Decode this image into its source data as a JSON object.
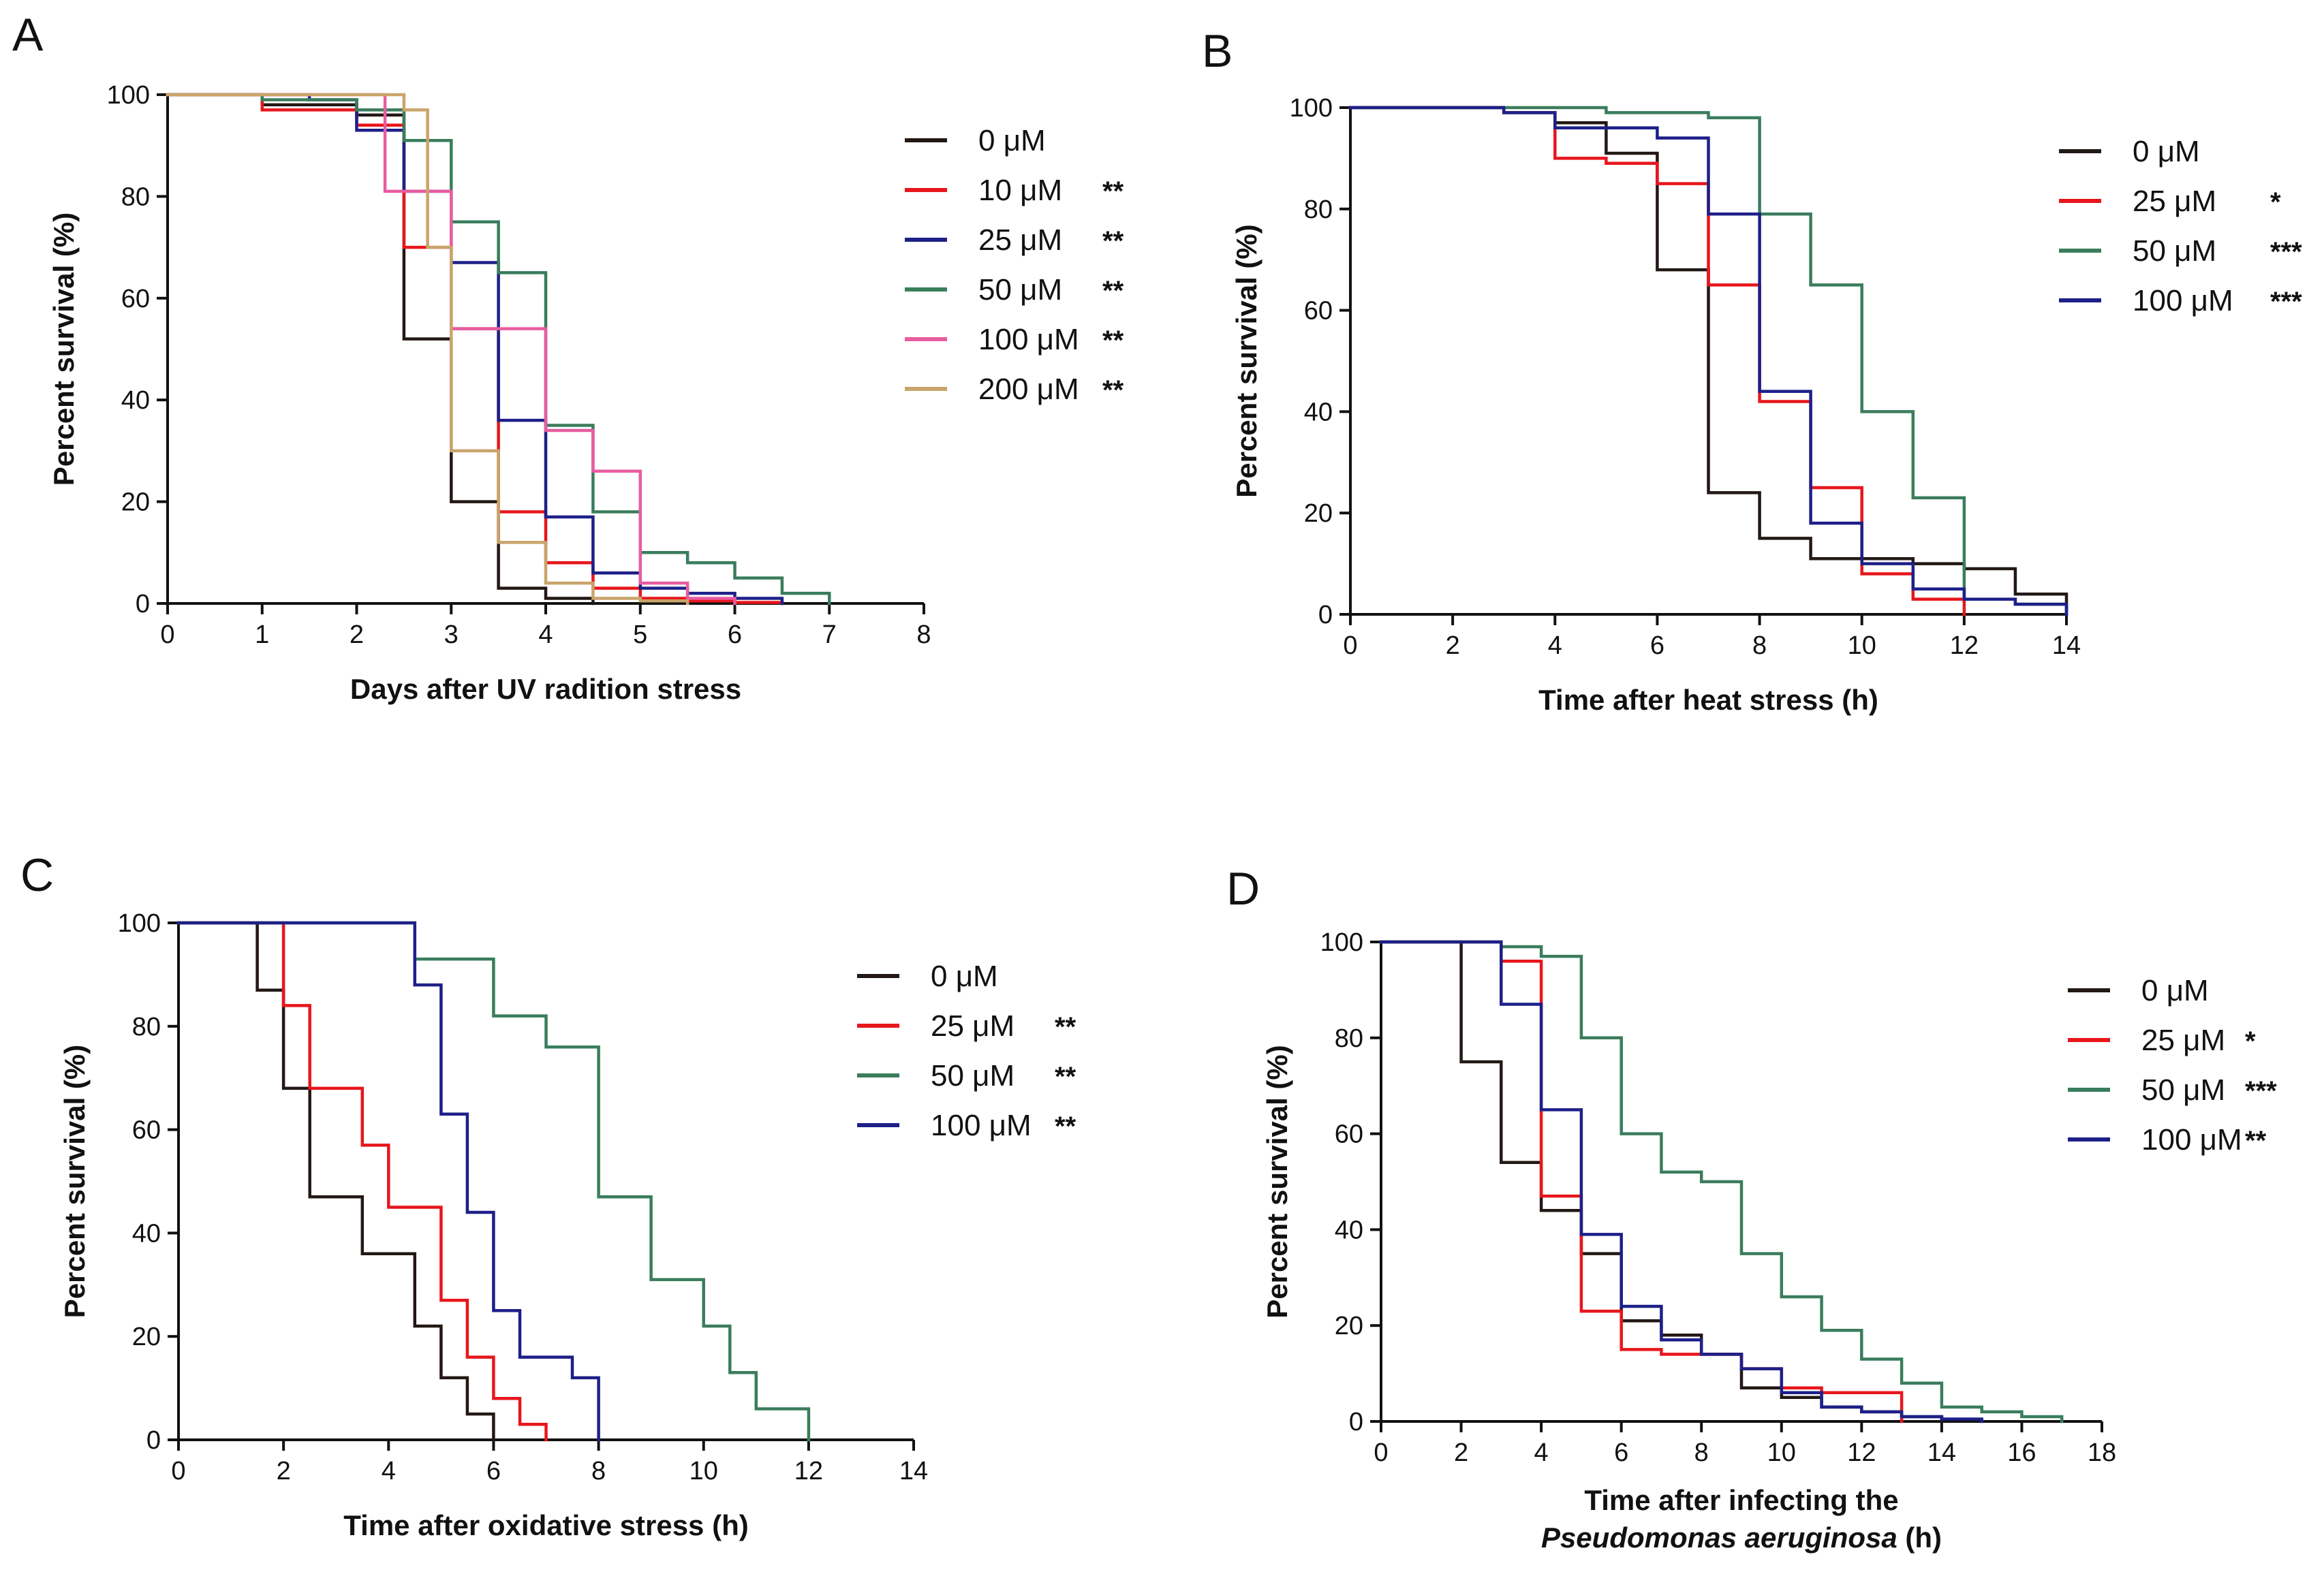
{
  "chart_data": [
    {
      "type": "line",
      "subtype": "kaplan-meier-step",
      "panel": "A",
      "xlabel": "Days after UV radition stress",
      "xlabel_lines": [
        "Days after UV radition stress"
      ],
      "ylabel": "Percent survival (%)",
      "xlim": [
        0,
        8
      ],
      "ylim": [
        0,
        100
      ],
      "xticks": [
        0,
        1,
        2,
        3,
        4,
        5,
        6,
        7,
        8
      ],
      "yticks": [
        0,
        20,
        40,
        60,
        80,
        100
      ],
      "series": [
        {
          "name": "0 μM",
          "sig": "",
          "color": "#231815",
          "x": [
            0,
            1,
            2,
            2.5,
            3,
            3.5,
            4,
            4.5
          ],
          "y": [
            100,
            98,
            96,
            52,
            20,
            3,
            1,
            0
          ]
        },
        {
          "name": "10 μM",
          "sig": "**",
          "color": "#e8161c",
          "x": [
            0,
            1,
            2,
            2.5,
            3,
            3.5,
            4,
            4.5,
            5,
            5.5,
            6,
            6.5
          ],
          "y": [
            100,
            97,
            94,
            70,
            54,
            18,
            8,
            3,
            1,
            0.5,
            0.2,
            0
          ]
        },
        {
          "name": "25 μM",
          "sig": "**",
          "color": "#1d2088",
          "x": [
            0,
            1.5,
            2,
            2.5,
            3,
            3.5,
            4,
            4.5,
            5,
            5.5,
            6,
            6.5
          ],
          "y": [
            100,
            99,
            93,
            81,
            67,
            36,
            17,
            6,
            3,
            2,
            1,
            0
          ]
        },
        {
          "name": "50 μM",
          "sig": "**",
          "color": "#3a7d5c",
          "x": [
            0,
            1,
            2,
            2.5,
            3,
            3.5,
            4,
            4.5,
            5,
            5.5,
            6,
            6.5,
            7
          ],
          "y": [
            100,
            99,
            97,
            91,
            75,
            65,
            35,
            18,
            10,
            8,
            5,
            2,
            0
          ]
        },
        {
          "name": "100 μM",
          "sig": "**",
          "color": "#e85ca0",
          "x": [
            0,
            2,
            2.3,
            3,
            3.5,
            4,
            4.5,
            5,
            5.5,
            6
          ],
          "y": [
            100,
            100,
            81,
            54,
            54,
            34,
            26,
            4,
            1,
            0
          ]
        },
        {
          "name": "200 μM",
          "sig": "**",
          "color": "#c9a46a",
          "x": [
            0,
            2.5,
            2.75,
            3,
            3.5,
            4,
            4.5,
            5,
            5.5
          ],
          "y": [
            100,
            97,
            70,
            30,
            12,
            4,
            1,
            0.5,
            0
          ]
        }
      ]
    },
    {
      "type": "line",
      "subtype": "kaplan-meier-step",
      "panel": "B",
      "xlabel": "Time after heat stress (h)",
      "xlabel_lines": [
        "Time after heat stress (h)"
      ],
      "ylabel": "Percent survival (%)",
      "xlim": [
        0,
        14
      ],
      "ylim": [
        0,
        100
      ],
      "xticks": [
        0,
        2,
        4,
        6,
        8,
        10,
        12,
        14
      ],
      "yticks": [
        0,
        20,
        40,
        60,
        80,
        100
      ],
      "series": [
        {
          "name": "0 μM",
          "sig": "",
          "color": "#231815",
          "x": [
            0,
            3,
            4,
            5,
            6,
            7,
            8,
            9,
            10,
            11,
            12,
            13,
            14
          ],
          "y": [
            100,
            99,
            97,
            91,
            68,
            24,
            15,
            11,
            11,
            10,
            9,
            4,
            0
          ]
        },
        {
          "name": "25 μM",
          "sig": "*",
          "color": "#e8161c",
          "x": [
            0,
            3,
            4,
            5,
            6,
            7,
            8,
            9,
            10,
            11,
            12
          ],
          "y": [
            100,
            99,
            90,
            89,
            85,
            65,
            42,
            25,
            8,
            3,
            0
          ]
        },
        {
          "name": "50 μM",
          "sig": "***",
          "color": "#3a7d5c",
          "x": [
            0,
            5,
            7,
            8,
            9,
            10,
            11,
            12,
            13,
            14
          ],
          "y": [
            100,
            99,
            98,
            79,
            65,
            40,
            23,
            3,
            2,
            0
          ]
        },
        {
          "name": "100 μM",
          "sig": "***",
          "color": "#1d2088",
          "x": [
            0,
            3,
            4,
            5,
            6,
            7,
            8,
            9,
            10,
            11,
            12,
            13,
            14
          ],
          "y": [
            100,
            99,
            96,
            96,
            94,
            79,
            44,
            18,
            10,
            5,
            3,
            2,
            0
          ]
        }
      ]
    },
    {
      "type": "line",
      "subtype": "kaplan-meier-step",
      "panel": "C",
      "xlabel": "Time after oxidative stress (h)",
      "xlabel_lines": [
        "Time after oxidative stress (h)"
      ],
      "ylabel": "Percent survival (%)",
      "xlim": [
        0,
        14
      ],
      "ylim": [
        0,
        100
      ],
      "xticks": [
        0,
        2,
        4,
        6,
        8,
        10,
        12,
        14
      ],
      "yticks": [
        0,
        20,
        40,
        60,
        80,
        100
      ],
      "series": [
        {
          "name": "0 μM",
          "sig": "",
          "color": "#231815",
          "x": [
            0,
            1.5,
            2,
            2.5,
            3.5,
            4.5,
            5,
            5.5,
            6
          ],
          "y": [
            100,
            87,
            68,
            47,
            36,
            22,
            12,
            5,
            0
          ]
        },
        {
          "name": "25 μM",
          "sig": "**",
          "color": "#e8161c",
          "x": [
            0,
            2,
            2.5,
            3.5,
            4,
            5,
            5.5,
            6,
            6.5,
            7
          ],
          "y": [
            100,
            84,
            68,
            57,
            45,
            27,
            16,
            8,
            3,
            0
          ]
        },
        {
          "name": "50 μM",
          "sig": "**",
          "color": "#3a7d5c",
          "x": [
            0,
            4.5,
            6,
            7,
            8,
            9,
            10,
            10.5,
            11,
            12
          ],
          "y": [
            100,
            93,
            82,
            76,
            47,
            31,
            22,
            13,
            6,
            0
          ]
        },
        {
          "name": "100 μM",
          "sig": "**",
          "color": "#1d2088",
          "x": [
            0,
            4.5,
            5,
            5.5,
            6,
            6.5,
            7.5,
            8
          ],
          "y": [
            100,
            88,
            63,
            44,
            25,
            16,
            12,
            0
          ]
        }
      ]
    },
    {
      "type": "line",
      "subtype": "kaplan-meier-step",
      "panel": "D",
      "xlabel": "Time after infecting the Pseudomonas aeruginosa (h)",
      "xlabel_lines": [
        "Time after infecting the",
        "Pseudomonas aeruginosa (h)"
      ],
      "ylabel": "Percent survival (%)",
      "xlim": [
        0,
        18
      ],
      "ylim": [
        0,
        100
      ],
      "xticks": [
        0,
        2,
        4,
        6,
        8,
        10,
        12,
        14,
        16,
        18
      ],
      "yticks": [
        0,
        20,
        40,
        60,
        80,
        100
      ],
      "series": [
        {
          "name": "0 μM",
          "sig": "",
          "color": "#231815",
          "x": [
            0,
            2,
            3,
            4,
            5,
            6,
            7,
            8,
            9,
            10,
            11,
            12,
            13,
            14
          ],
          "y": [
            100,
            75,
            54,
            44,
            35,
            21,
            18,
            14,
            7,
            5,
            3,
            2,
            1,
            0
          ]
        },
        {
          "name": "25 μM",
          "sig": "*",
          "color": "#e8161c",
          "x": [
            0,
            3,
            4,
            5,
            6,
            7,
            8,
            9,
            10,
            11,
            12,
            13
          ],
          "y": [
            100,
            96,
            47,
            23,
            15,
            14,
            14,
            11,
            7,
            6,
            6,
            0
          ]
        },
        {
          "name": "50 μM",
          "sig": "***",
          "color": "#3a7d5c",
          "x": [
            0,
            3,
            4,
            5,
            6,
            7,
            8,
            9,
            10,
            11,
            12,
            13,
            14,
            15,
            16,
            17
          ],
          "y": [
            100,
            99,
            97,
            80,
            60,
            52,
            50,
            35,
            26,
            19,
            13,
            8,
            3,
            2,
            1,
            0
          ]
        },
        {
          "name": "100 μM",
          "sig": "**",
          "color": "#1d2088",
          "x": [
            0,
            3,
            4,
            5,
            6,
            7,
            8,
            9,
            10,
            11,
            12,
            13,
            14,
            15
          ],
          "y": [
            100,
            87,
            65,
            39,
            24,
            17,
            14,
            11,
            6,
            3,
            2,
            1,
            0.5,
            0
          ]
        }
      ]
    }
  ]
}
